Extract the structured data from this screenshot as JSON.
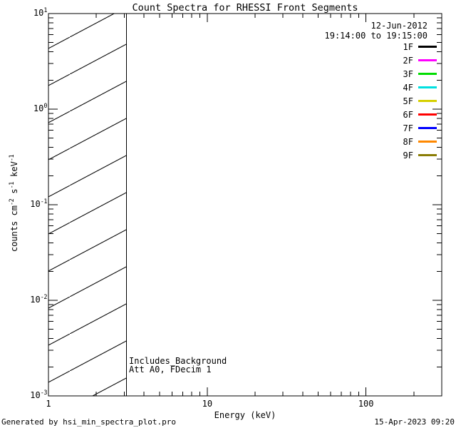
{
  "title": "Count Spectra for RHESSI Front Segments",
  "observation": {
    "date": "12-Jun-2012",
    "time_range": "19:14:00 to 19:15:00"
  },
  "legend": {
    "position": "upper right",
    "entries": [
      {
        "label": "1F",
        "color": "#000000"
      },
      {
        "label": "2F",
        "color": "#ff00ff"
      },
      {
        "label": "3F",
        "color": "#00dd00"
      },
      {
        "label": "4F",
        "color": "#00e0e0"
      },
      {
        "label": "5F",
        "color": "#d6d000"
      },
      {
        "label": "6F",
        "color": "#ff0000"
      },
      {
        "label": "7F",
        "color": "#0000ff"
      },
      {
        "label": "8F",
        "color": "#ff8800"
      },
      {
        "label": "9F",
        "color": "#8a7d05"
      }
    ]
  },
  "annotation": {
    "line1": "Includes_Background",
    "line2": "Att A0, FDecim 1"
  },
  "footer": {
    "generated_by": "Generated by hsi_min_spectra_plot.pro",
    "timestamp": "15-Apr-2023 09:20"
  },
  "chart_data": {
    "type": "line",
    "title": "Count Spectra for RHESSI Front Segments",
    "xlabel": "Energy (keV)",
    "ylabel": "counts cm^-2 s^-1 keV^-1",
    "ylabel_parts": [
      {
        "t": "counts cm"
      },
      {
        "t": "-2",
        "sup": true
      },
      {
        "t": " s"
      },
      {
        "t": "-1",
        "sup": true
      },
      {
        "t": " keV"
      },
      {
        "t": "-1",
        "sup": true
      }
    ],
    "xscale": "log",
    "yscale": "log",
    "xlim": [
      1,
      300
    ],
    "ylim": [
      0.001,
      10
    ],
    "x_major_ticks": [
      1,
      10,
      100
    ],
    "x_tick_labels": [
      "1",
      "10",
      "100"
    ],
    "y_major_ticks": [
      0.001,
      0.01,
      0.1,
      1,
      10
    ],
    "minor_ticks": "log-decade minors (2-9) on all four axes, inward",
    "grid": false,
    "frame_color": "#000000",
    "hatched_region": {
      "xmin": 1,
      "xmax": 3.1,
      "style": "diagonal-hatch",
      "meaning": "no valid data below ~3 keV"
    },
    "series": [
      {
        "name": "1F",
        "color": "#000000",
        "points": []
      },
      {
        "name": "2F",
        "color": "#ff00ff",
        "points": []
      },
      {
        "name": "3F",
        "color": "#00dd00",
        "points": []
      },
      {
        "name": "4F",
        "color": "#00e0e0",
        "points": []
      },
      {
        "name": "5F",
        "color": "#d6d000",
        "points": []
      },
      {
        "name": "6F",
        "color": "#ff0000",
        "points": []
      },
      {
        "name": "7F",
        "color": "#0000ff",
        "points": []
      },
      {
        "name": "8F",
        "color": "#ff8800",
        "points": []
      },
      {
        "name": "9F",
        "color": "#8a7d05",
        "points": []
      }
    ],
    "note": "no spectral curves are drawn in the plot area; only the hatched low-energy band is shown"
  }
}
